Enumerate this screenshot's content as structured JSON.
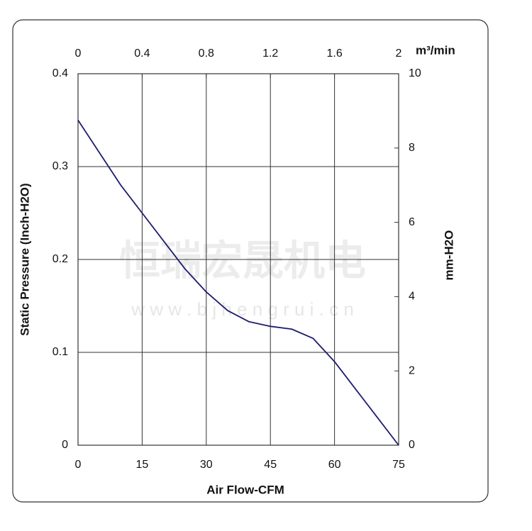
{
  "chart_data": {
    "type": "line",
    "x_label": "Air Flow-CFM",
    "y_label": "Static Pressure (Inch-H2O)",
    "y2_label": "mm-H2O",
    "x2_label": "m³/min",
    "watermark": {
      "name": "恒瑞宏晟机电",
      "url": "w w w . b j h e n g r u i . c n"
    },
    "xlim": [
      0,
      75
    ],
    "xticks": [
      0,
      15,
      30,
      45,
      60,
      75
    ],
    "x2lim": [
      0,
      2
    ],
    "x2ticks": [
      0,
      0.4,
      0.8,
      1.2,
      1.6,
      2
    ],
    "ylim": [
      0,
      0.4
    ],
    "yticks": [
      0,
      0.1,
      0.2,
      0.3,
      0.4
    ],
    "y2lim": [
      0,
      10
    ],
    "y2ticks": [
      0,
      2,
      4,
      6,
      8,
      10
    ],
    "grid": true,
    "series": [
      {
        "color": "#1c1c6e",
        "x": [
          0,
          5,
          10,
          15,
          20,
          25,
          30,
          35,
          40,
          45,
          50,
          55,
          58,
          60,
          65,
          70,
          75
        ],
        "values": [
          0.35,
          0.315,
          0.28,
          0.25,
          0.22,
          0.19,
          0.165,
          0.145,
          0.133,
          0.128,
          0.125,
          0.115,
          0.1,
          0.09,
          0.06,
          0.03,
          0
        ]
      }
    ]
  }
}
